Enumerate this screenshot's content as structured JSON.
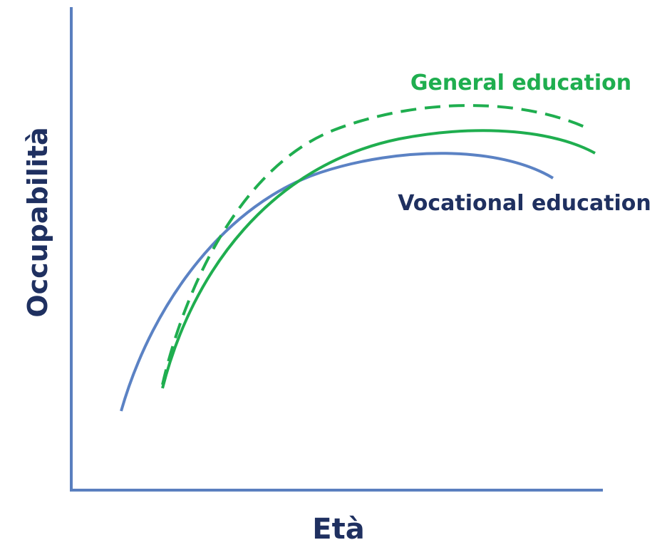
{
  "axes": {
    "x_label": "Età",
    "y_label": "Occupabilità"
  },
  "curve_labels": {
    "general": "General education",
    "vocational": "Vocational education"
  }
}
